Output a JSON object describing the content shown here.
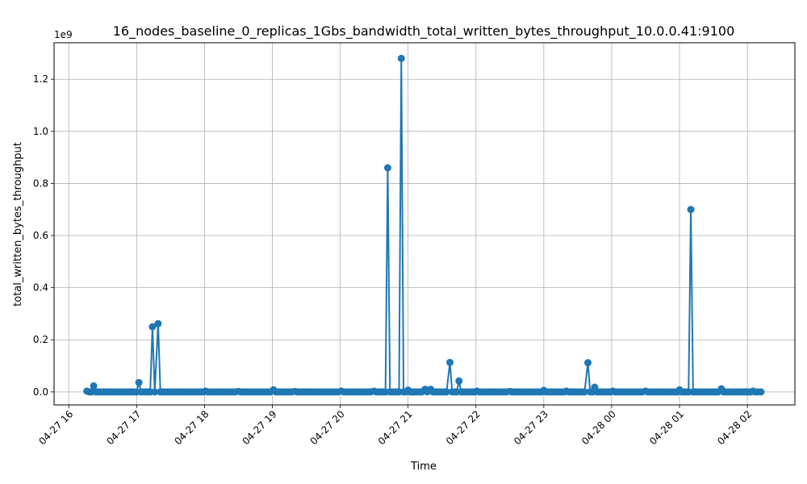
{
  "chart_data": {
    "type": "line",
    "title": "16_nodes_baseline_0_replicas_1Gbs_bandwidth_total_written_bytes_throughput_10.0.0.41:9100",
    "xlabel": "Time",
    "ylabel": "total_written_bytes_throughput",
    "y_offset_text": "1e9",
    "x_tick_labels": [
      "04-27 16",
      "04-27 17",
      "04-27 18",
      "04-27 19",
      "04-27 20",
      "04-27 21",
      "04-27 22",
      "04-27 23",
      "04-28 00",
      "04-28 01",
      "04-28 02"
    ],
    "y_tick_labels": [
      "0.0",
      "0.2",
      "0.4",
      "0.6",
      "0.8",
      "1.0",
      "1.2"
    ],
    "ylim": [
      -0.05,
      1.34
    ],
    "xlim": [
      "2026-04-27 15:47",
      "2026-04-28 02:42"
    ],
    "grid": true,
    "color": "#1f77b4",
    "series": [
      {
        "x": [
          "2026-04-27 16:16",
          "2026-04-27 16:20",
          "2026-04-27 16:22",
          "2026-04-27 17:02",
          "2026-04-27 17:14",
          "2026-04-27 17:19",
          "2026-04-27 18:01",
          "2026-04-27 18:30",
          "2026-04-27 19:01",
          "2026-04-27 19:20",
          "2026-04-27 20:01",
          "2026-04-27 20:30",
          "2026-04-27 20:42",
          "2026-04-27 20:54",
          "2026-04-27 21:00",
          "2026-04-27 21:15",
          "2026-04-27 21:20",
          "2026-04-27 21:37",
          "2026-04-27 21:45",
          "2026-04-27 22:01",
          "2026-04-27 22:30",
          "2026-04-27 23:00",
          "2026-04-27 23:20",
          "2026-04-27 23:39",
          "2026-04-27 23:45",
          "2026-04-28 00:01",
          "2026-04-28 00:30",
          "2026-04-28 01:00",
          "2026-04-28 01:10",
          "2026-04-28 01:37",
          "2026-04-28 02:05",
          "2026-04-28 02:12"
        ],
        "y": [
          0.003,
          0.0,
          0.023,
          0.036,
          0.25,
          0.262,
          0.003,
          0.002,
          0.008,
          0.002,
          0.003,
          0.003,
          0.86,
          1.28,
          0.007,
          0.01,
          0.01,
          0.113,
          0.042,
          0.003,
          0.002,
          0.006,
          0.003,
          0.112,
          0.018,
          0.003,
          0.003,
          0.008,
          0.7,
          0.012,
          0.003,
          0.0
        ]
      }
    ]
  }
}
